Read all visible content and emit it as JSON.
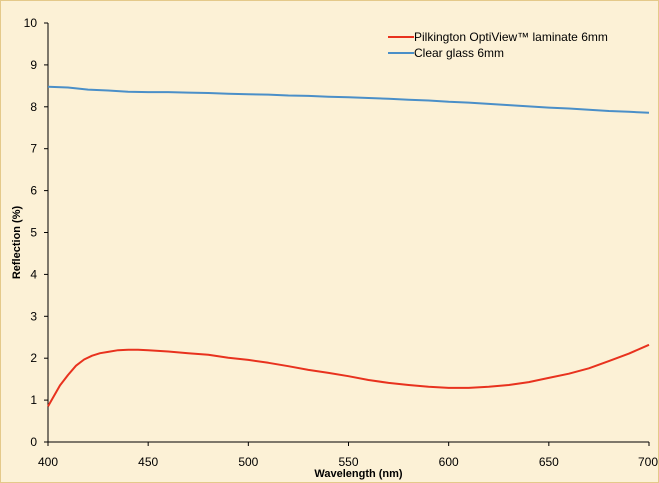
{
  "chart_data": {
    "type": "line",
    "title": "",
    "xlabel": "Wavelength (nm)",
    "ylabel": "Reflection (%)",
    "xlim": [
      400,
      700
    ],
    "ylim": [
      0,
      10
    ],
    "xticks": [
      "400",
      "450",
      "500",
      "550",
      "600",
      "650",
      "700"
    ],
    "yticks": [
      "0",
      "1",
      "2",
      "3",
      "4",
      "5",
      "6",
      "7",
      "8",
      "9",
      "10"
    ],
    "grid": false,
    "legend_position": "top-right",
    "series": [
      {
        "name": "Pilkington OptiView™ laminate 6mm",
        "color": "#e8321e",
        "x": [
          400,
          403,
          406,
          410,
          414,
          418,
          422,
          426,
          430,
          435,
          440,
          445,
          450,
          460,
          470,
          480,
          490,
          500,
          510,
          520,
          530,
          540,
          550,
          560,
          570,
          580,
          590,
          600,
          610,
          620,
          630,
          640,
          650,
          660,
          670,
          680,
          690,
          700
        ],
        "y": [
          0.85,
          1.1,
          1.35,
          1.6,
          1.82,
          1.97,
          2.06,
          2.12,
          2.15,
          2.19,
          2.2,
          2.2,
          2.19,
          2.16,
          2.12,
          2.08,
          2.01,
          1.96,
          1.89,
          1.81,
          1.72,
          1.65,
          1.57,
          1.48,
          1.41,
          1.36,
          1.32,
          1.29,
          1.29,
          1.32,
          1.36,
          1.43,
          1.53,
          1.63,
          1.76,
          1.93,
          2.11,
          2.32
        ]
      },
      {
        "name": "Clear glass 6mm",
        "color": "#4a8fc8",
        "x": [
          400,
          410,
          420,
          430,
          440,
          450,
          460,
          470,
          480,
          490,
          500,
          510,
          520,
          530,
          540,
          550,
          560,
          570,
          580,
          590,
          600,
          610,
          620,
          630,
          640,
          650,
          660,
          670,
          680,
          690,
          700
        ],
        "y": [
          8.48,
          8.46,
          8.41,
          8.39,
          8.36,
          8.35,
          8.35,
          8.34,
          8.33,
          8.31,
          8.3,
          8.29,
          8.27,
          8.26,
          8.24,
          8.23,
          8.21,
          8.19,
          8.17,
          8.15,
          8.12,
          8.1,
          8.07,
          8.04,
          8.01,
          7.98,
          7.96,
          7.93,
          7.9,
          7.88,
          7.86
        ]
      }
    ]
  }
}
